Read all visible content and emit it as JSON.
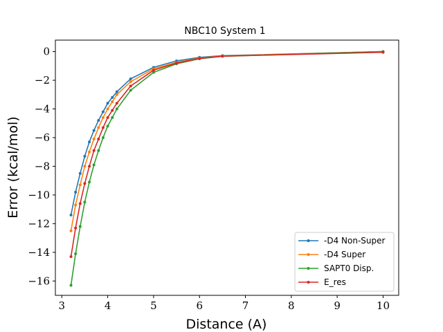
{
  "chart_data": {
    "type": "line",
    "title": "NBC10 System 1",
    "xlabel": "Distance (A)",
    "ylabel": "Error (kcal/mol)",
    "xlim": [
      2.86,
      10.34
    ],
    "ylim": [
      -17.0,
      0.8
    ],
    "xticks": [
      3,
      4,
      5,
      6,
      7,
      8,
      9,
      10
    ],
    "yticks": [
      0,
      -2,
      -4,
      -6,
      -8,
      -10,
      -12,
      -14,
      -16
    ],
    "ytick_labels": [
      "0",
      "−2",
      "−4",
      "−6",
      "−8",
      "−10",
      "−12",
      "−14",
      "−16"
    ],
    "grid": false,
    "legend_position": "bottom-right",
    "x": [
      3.2,
      3.3,
      3.4,
      3.5,
      3.6,
      3.7,
      3.8,
      3.9,
      4.0,
      4.1,
      4.2,
      4.5,
      5.0,
      5.5,
      6.0,
      6.5,
      10.0
    ],
    "series": [
      {
        "name": "-D4 Non-Super",
        "color": "#1f77b4",
        "values": [
          -11.4,
          -9.8,
          -8.5,
          -7.3,
          -6.3,
          -5.5,
          -4.8,
          -4.2,
          -3.6,
          -3.2,
          -2.8,
          -1.9,
          -1.1,
          -0.65,
          -0.4,
          -0.28,
          0.0
        ]
      },
      {
        "name": "-D4 Super",
        "color": "#ff7f0e",
        "values": [
          -12.5,
          -10.7,
          -9.3,
          -8.0,
          -7.0,
          -6.1,
          -5.3,
          -4.6,
          -4.0,
          -3.5,
          -3.0,
          -2.1,
          -1.2,
          -0.75,
          -0.45,
          -0.3,
          0.0
        ]
      },
      {
        "name": "SAPT0 Disp.",
        "color": "#2ca02c",
        "values": [
          -16.3,
          -14.1,
          -12.2,
          -10.5,
          -9.1,
          -7.9,
          -6.9,
          -6.0,
          -5.2,
          -4.6,
          -4.0,
          -2.7,
          -1.45,
          -0.85,
          -0.5,
          -0.33,
          0.0
        ]
      },
      {
        "name": "E_res",
        "color": "#d62728",
        "values": [
          -14.3,
          -12.3,
          -10.6,
          -9.2,
          -8.0,
          -6.9,
          -6.1,
          -5.3,
          -4.6,
          -4.1,
          -3.6,
          -2.4,
          -1.3,
          -0.8,
          -0.48,
          -0.32,
          -0.05
        ]
      }
    ]
  }
}
